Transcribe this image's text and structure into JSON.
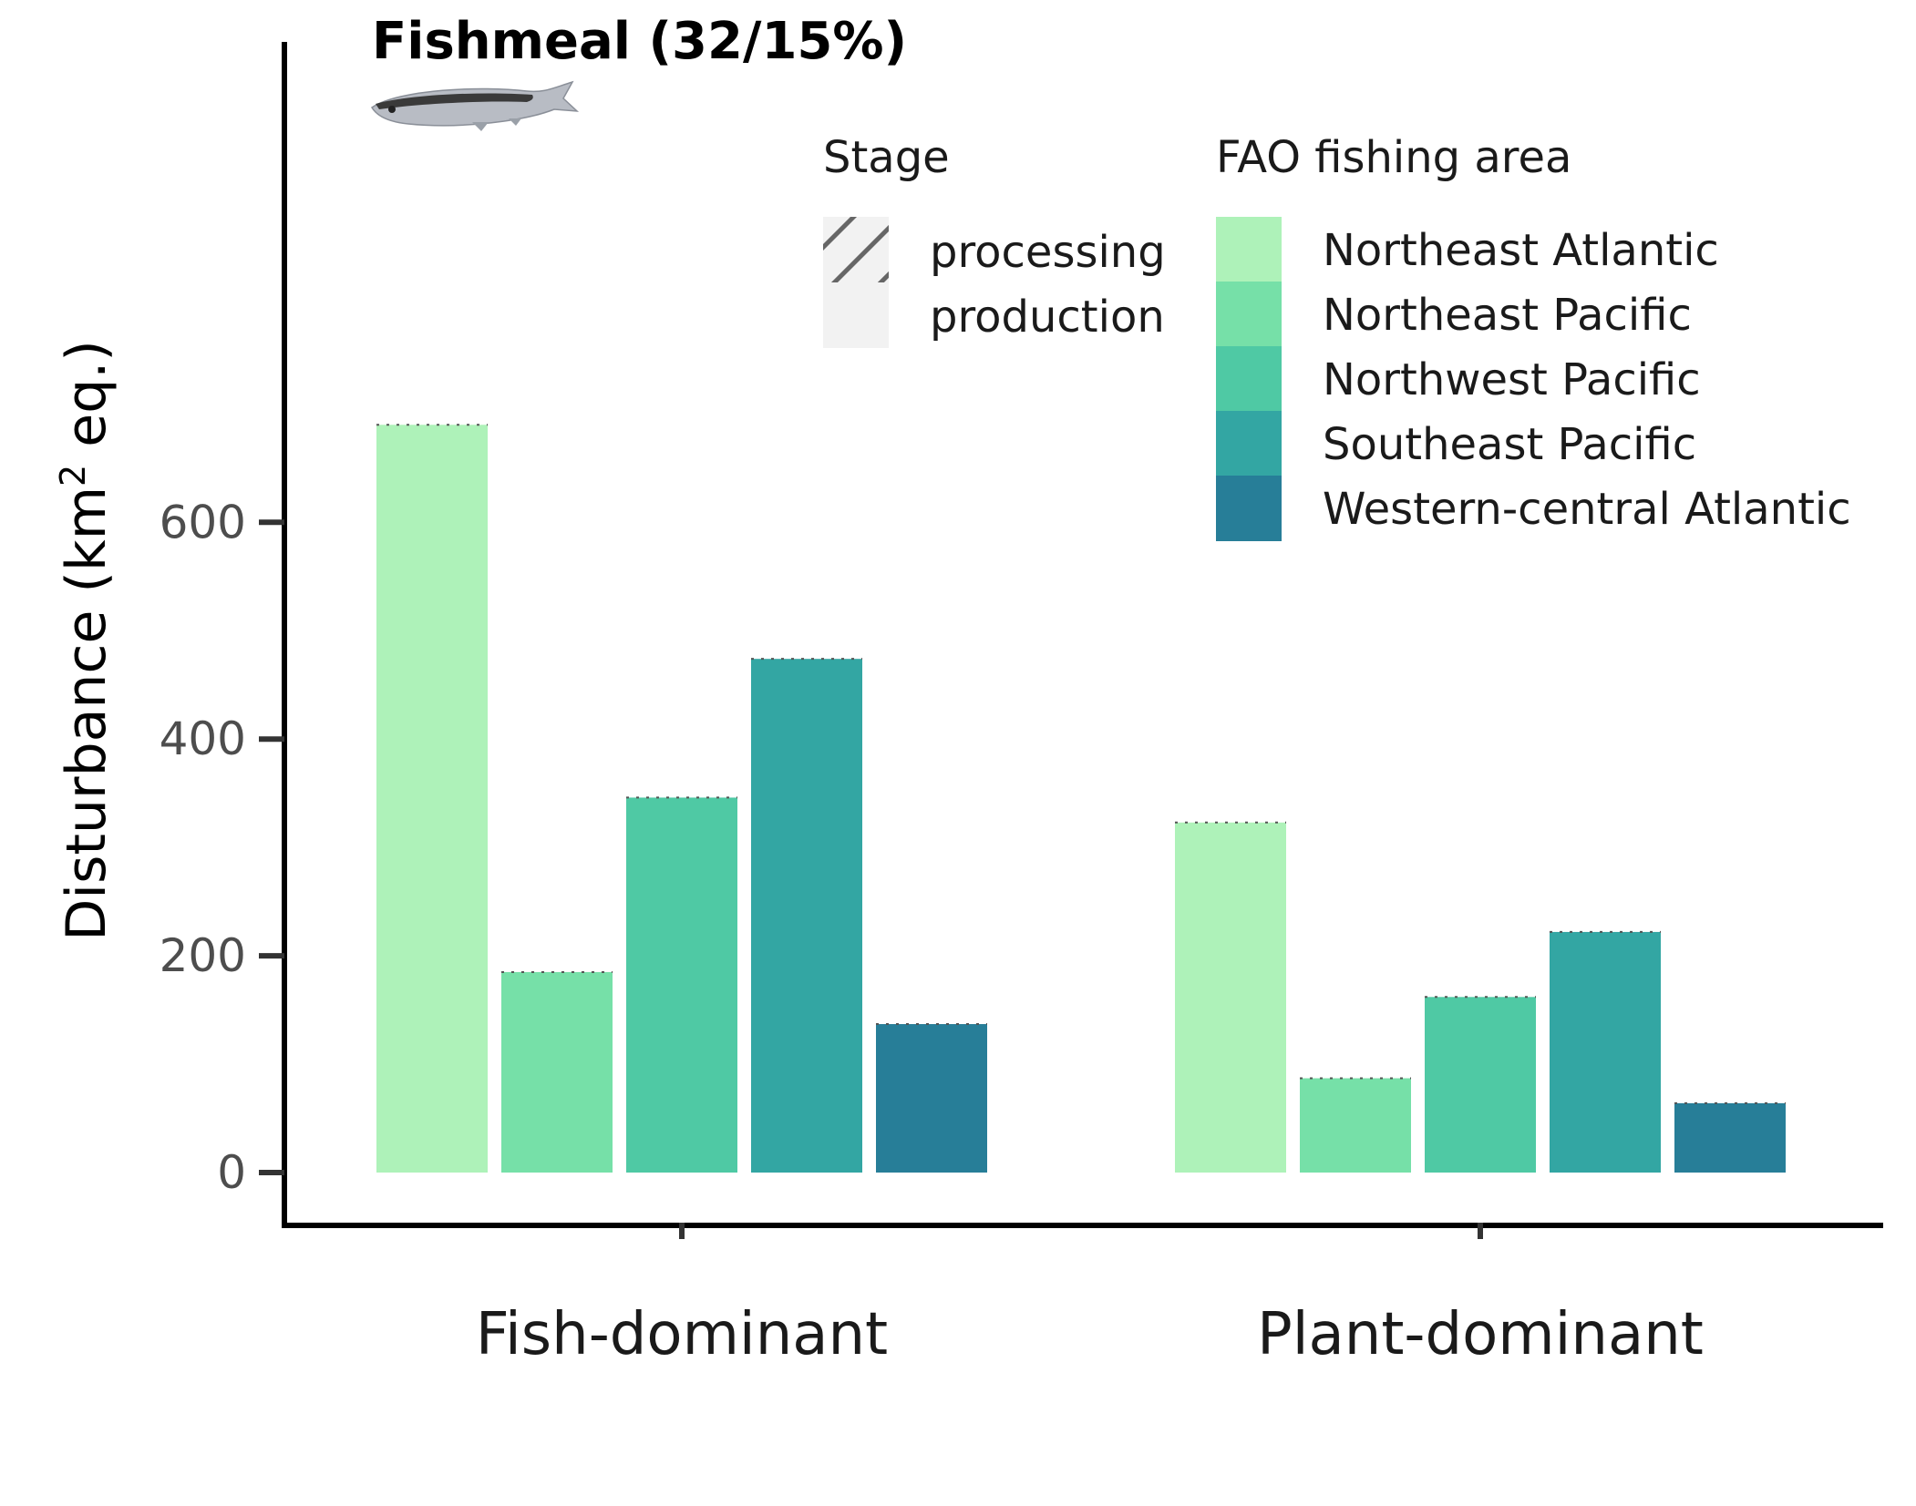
{
  "chart_data": {
    "type": "bar",
    "title": "Fishmeal (32/15%)",
    "ylabel_main": "Disturbance (km",
    "ylabel_sup": "2",
    "ylabel_end": " eq.)",
    "xlabel": "",
    "categories": [
      "Fish-dominant",
      "Plant-dominant"
    ],
    "ylim": [
      0,
      760
    ],
    "yticks": [
      0,
      200,
      400,
      600
    ],
    "series": [
      {
        "name": "Northeast Atlantic",
        "color": "#aef2b9",
        "values": [
          690,
          323
        ]
      },
      {
        "name": "Northeast Pacific",
        "color": "#76e0a8",
        "values": [
          185,
          87
        ]
      },
      {
        "name": "Northwest Pacific",
        "color": "#4fc9a4",
        "values": [
          346,
          162
        ]
      },
      {
        "name": "Southeast Pacific",
        "color": "#33a6a3",
        "values": [
          474,
          222
        ]
      },
      {
        "name": "Western-central Atlantic",
        "color": "#277e98",
        "values": [
          137,
          64
        ]
      }
    ],
    "stages": [
      "processing",
      "production"
    ],
    "legend": {
      "stage_title": "Stage",
      "area_title": "FAO fishing area",
      "placement": "top-right"
    },
    "grid": false,
    "icon": "anchovy-fish-icon"
  }
}
